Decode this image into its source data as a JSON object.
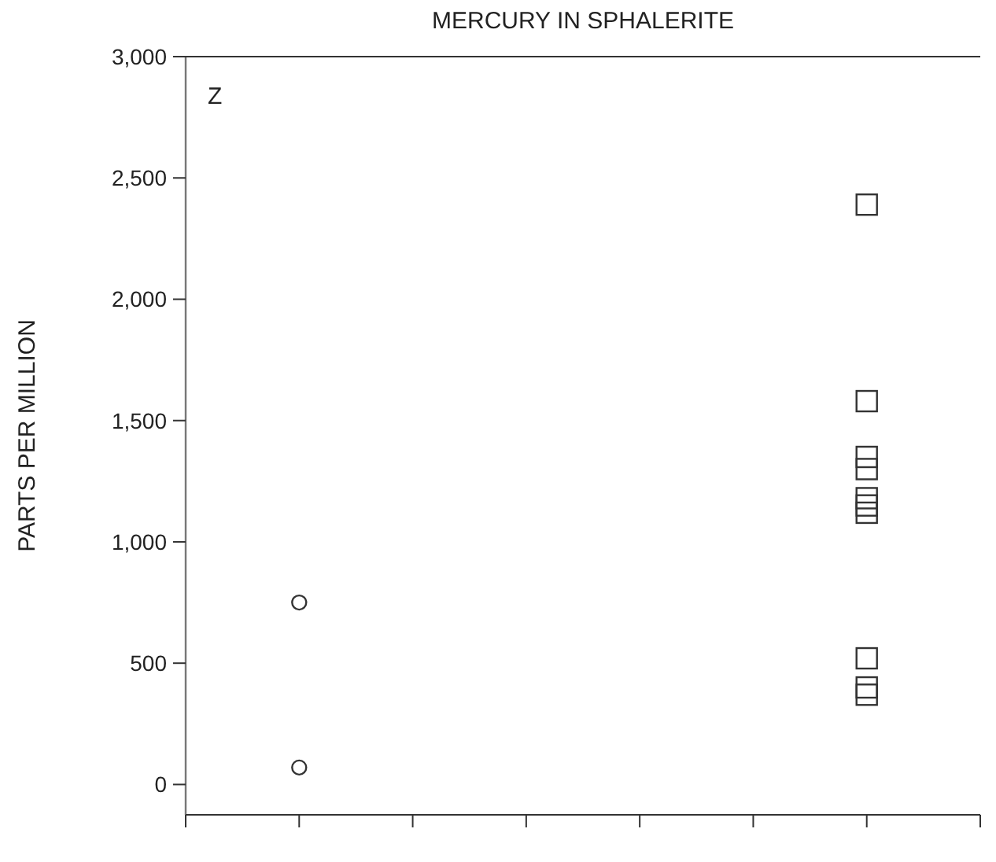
{
  "chart_data": {
    "type": "scatter",
    "title": "MERCURY IN SPHALERITE",
    "ylabel": "PARTS PER MILLION",
    "annotations": [
      "Z"
    ],
    "categories": [
      null,
      null,
      null,
      null,
      null,
      null,
      null,
      null
    ],
    "ylim": [
      -125,
      3000
    ],
    "yticks": [
      {
        "value": 0,
        "label": "0"
      },
      {
        "value": 500,
        "label": "500"
      },
      {
        "value": 1000,
        "label": "1,000"
      },
      {
        "value": 1500,
        "label": "1,500"
      },
      {
        "value": 2000,
        "label": "2,000"
      },
      {
        "value": 2500,
        "label": "2,500"
      },
      {
        "value": 3000,
        "label": "3,000"
      }
    ],
    "grid": false,
    "series": [
      {
        "color": "#333333",
        "marker": "circle",
        "values": [
          null,
          750,
          null,
          null,
          null,
          null,
          null,
          null
        ]
      },
      {
        "color": "#333333",
        "marker": "circle",
        "values": [
          null,
          70,
          null,
          null,
          null,
          null,
          null,
          null
        ]
      },
      {
        "color": "#333333",
        "marker": "square",
        "values": [
          null,
          null,
          null,
          null,
          null,
          null,
          2390,
          null
        ]
      },
      {
        "color": "#333333",
        "marker": "square",
        "values": [
          null,
          null,
          null,
          null,
          null,
          null,
          1580,
          null
        ]
      },
      {
        "color": "#333333",
        "marker": "square",
        "values": [
          null,
          null,
          null,
          null,
          null,
          null,
          1350,
          null
        ]
      },
      {
        "color": "#333333",
        "marker": "square",
        "values": [
          null,
          null,
          null,
          null,
          null,
          null,
          1300,
          null
        ]
      },
      {
        "color": "#333333",
        "marker": "square",
        "values": [
          null,
          null,
          null,
          null,
          null,
          null,
          1180,
          null
        ]
      },
      {
        "color": "#333333",
        "marker": "square",
        "values": [
          null,
          null,
          null,
          null,
          null,
          null,
          1150,
          null
        ]
      },
      {
        "color": "#333333",
        "marker": "square",
        "values": [
          null,
          null,
          null,
          null,
          null,
          null,
          1120,
          null
        ]
      },
      {
        "color": "#333333",
        "marker": "square",
        "values": [
          null,
          null,
          null,
          null,
          null,
          null,
          520,
          null
        ]
      },
      {
        "color": "#333333",
        "marker": "square",
        "values": [
          null,
          null,
          null,
          null,
          null,
          null,
          400,
          null
        ]
      },
      {
        "color": "#333333",
        "marker": "square",
        "values": [
          null,
          null,
          null,
          null,
          null,
          null,
          370,
          null
        ]
      }
    ]
  }
}
